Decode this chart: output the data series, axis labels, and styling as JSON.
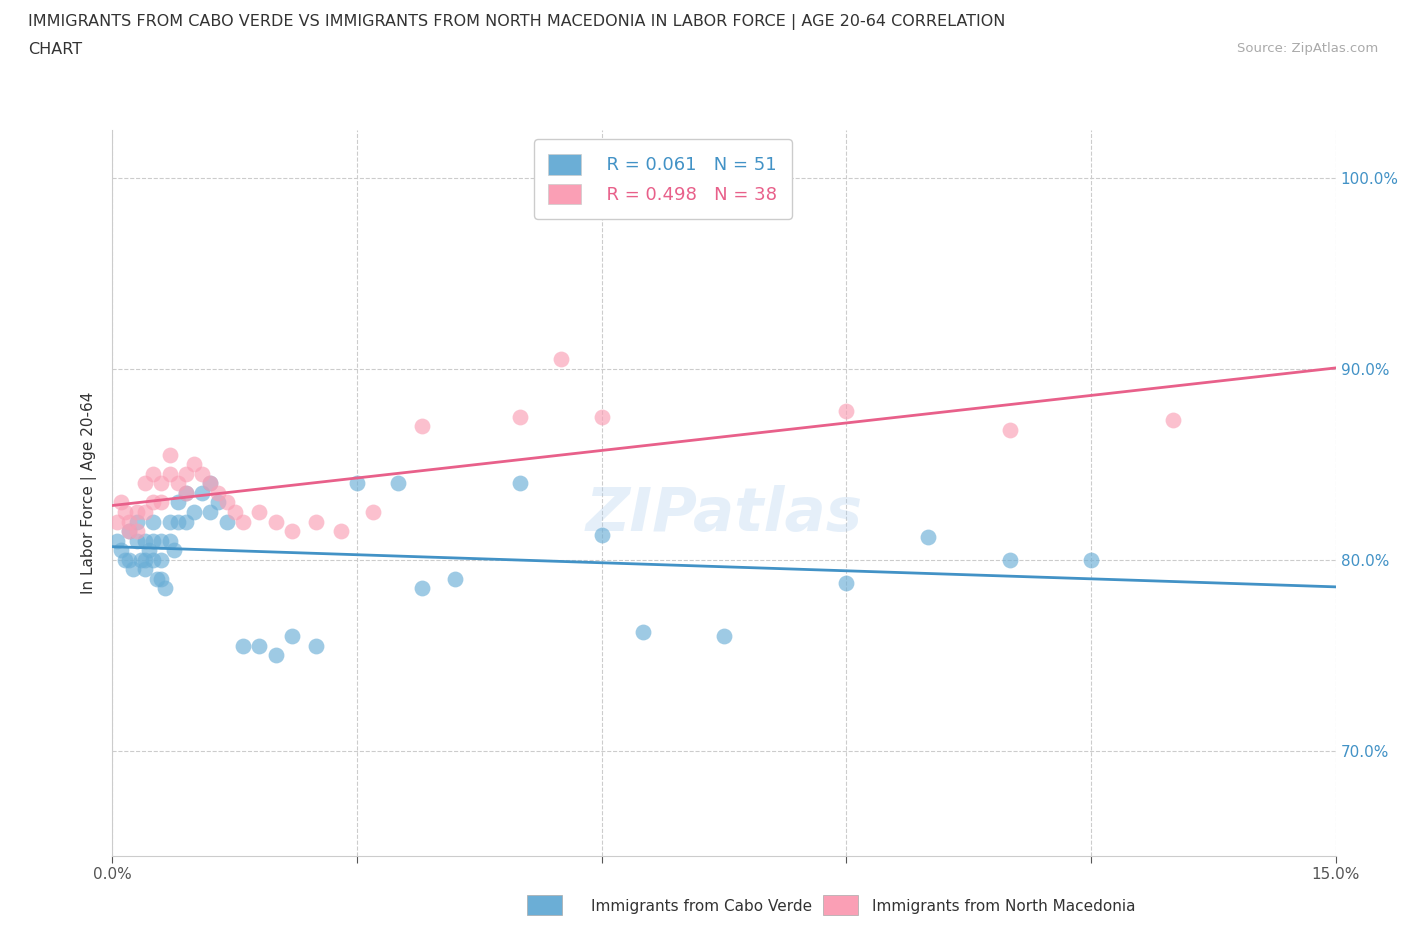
{
  "title_line1": "IMMIGRANTS FROM CABO VERDE VS IMMIGRANTS FROM NORTH MACEDONIA IN LABOR FORCE | AGE 20-64 CORRELATION",
  "title_line2": "CHART",
  "source_text": "Source: ZipAtlas.com",
  "ylabel": "In Labor Force | Age 20-64",
  "xlim": [
    0.0,
    0.15
  ],
  "ylim": [
    0.645,
    1.025
  ],
  "xtick_vals": [
    0.0,
    0.03,
    0.06,
    0.09,
    0.12,
    0.15
  ],
  "xticklabels": [
    "0.0%",
    "",
    "",
    "",
    "",
    "15.0%"
  ],
  "ytick_vals": [
    0.7,
    0.8,
    0.9,
    1.0
  ],
  "yticklabels": [
    "70.0%",
    "80.0%",
    "90.0%",
    "100.0%"
  ],
  "watermark": "ZIPatlas",
  "legend_r1": "R = 0.061",
  "legend_n1": "N = 51",
  "legend_r2": "R = 0.498",
  "legend_n2": "N = 38",
  "color_blue": "#6baed6",
  "color_pink": "#fa9fb5",
  "color_blue_line": "#4292c6",
  "color_pink_line": "#e8608a",
  "blue_x": [
    0.0005,
    0.001,
    0.0015,
    0.002,
    0.002,
    0.0025,
    0.003,
    0.003,
    0.0035,
    0.004,
    0.004,
    0.004,
    0.0045,
    0.005,
    0.005,
    0.005,
    0.0055,
    0.006,
    0.006,
    0.006,
    0.0065,
    0.007,
    0.007,
    0.0075,
    0.008,
    0.008,
    0.009,
    0.009,
    0.01,
    0.011,
    0.012,
    0.012,
    0.013,
    0.014,
    0.016,
    0.018,
    0.02,
    0.022,
    0.025,
    0.03,
    0.035,
    0.038,
    0.042,
    0.05,
    0.06,
    0.065,
    0.075,
    0.09,
    0.1,
    0.11,
    0.12
  ],
  "blue_y": [
    0.81,
    0.805,
    0.8,
    0.815,
    0.8,
    0.795,
    0.82,
    0.81,
    0.8,
    0.81,
    0.8,
    0.795,
    0.805,
    0.82,
    0.81,
    0.8,
    0.79,
    0.81,
    0.8,
    0.79,
    0.785,
    0.82,
    0.81,
    0.805,
    0.83,
    0.82,
    0.835,
    0.82,
    0.825,
    0.835,
    0.84,
    0.825,
    0.83,
    0.82,
    0.755,
    0.755,
    0.75,
    0.76,
    0.755,
    0.84,
    0.84,
    0.785,
    0.79,
    0.84,
    0.813,
    0.762,
    0.76,
    0.788,
    0.812,
    0.8,
    0.8
  ],
  "pink_x": [
    0.0005,
    0.001,
    0.0015,
    0.002,
    0.002,
    0.003,
    0.003,
    0.004,
    0.004,
    0.005,
    0.005,
    0.006,
    0.006,
    0.007,
    0.007,
    0.008,
    0.009,
    0.009,
    0.01,
    0.011,
    0.012,
    0.013,
    0.014,
    0.015,
    0.016,
    0.018,
    0.02,
    0.022,
    0.025,
    0.028,
    0.032,
    0.038,
    0.05,
    0.055,
    0.06,
    0.09,
    0.11,
    0.13
  ],
  "pink_y": [
    0.82,
    0.83,
    0.825,
    0.82,
    0.815,
    0.825,
    0.815,
    0.84,
    0.825,
    0.845,
    0.83,
    0.84,
    0.83,
    0.855,
    0.845,
    0.84,
    0.845,
    0.835,
    0.85,
    0.845,
    0.84,
    0.835,
    0.83,
    0.825,
    0.82,
    0.825,
    0.82,
    0.815,
    0.82,
    0.815,
    0.825,
    0.87,
    0.875,
    0.905,
    0.875,
    0.878,
    0.868,
    0.873
  ],
  "grid_color": "#cccccc",
  "background_color": "#ffffff",
  "bottom_legend_label1": "Immigrants from Cabo Verde",
  "bottom_legend_label2": "Immigrants from North Macedonia"
}
